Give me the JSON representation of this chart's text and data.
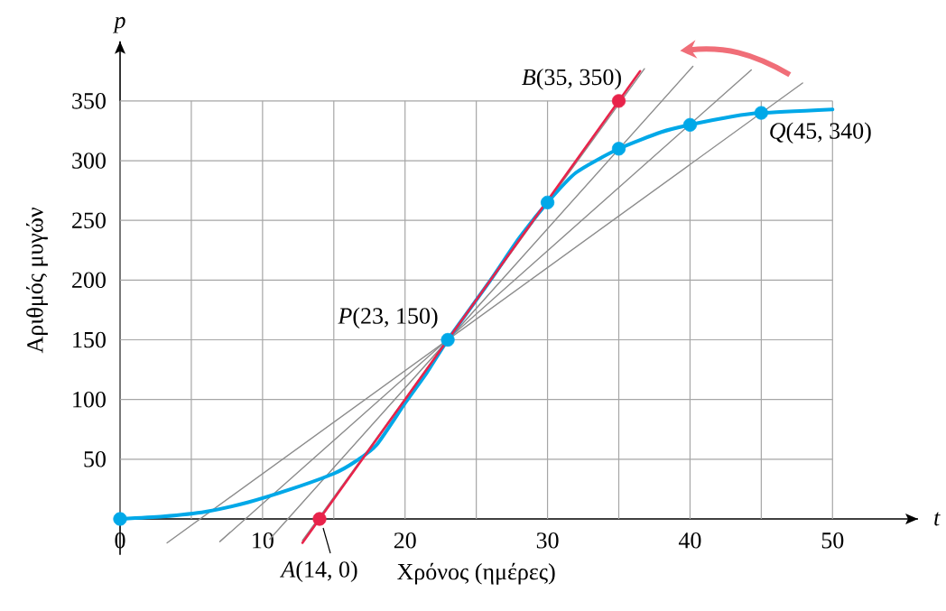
{
  "chart_data": {
    "type": "line",
    "xlabel": "Χρόνος (ημέρες)",
    "ylabel": "Αριθμός μυγών",
    "xlim": [
      0,
      56
    ],
    "ylim": [
      -30,
      400
    ],
    "xticks": [
      0,
      {
        "value": 5,
        "label": null
      },
      10,
      {
        "value": 15,
        "label": null
      },
      20,
      {
        "value": 25,
        "label": null
      },
      30,
      {
        "value": 35,
        "label": null
      },
      40,
      {
        "value": 45,
        "label": null
      },
      50
    ],
    "yticks": [
      50,
      100,
      150,
      200,
      250,
      300,
      350
    ],
    "grid": true,
    "series": [
      {
        "color": "#8c8c8c",
        "x": [
          3.3,
          47.9
        ],
        "values": [
          -20,
          365
        ]
      },
      {
        "color": "#8c8c8c",
        "x": [
          7,
          44.3
        ],
        "values": [
          -19,
          376
        ]
      },
      {
        "color": "#8c8c8c",
        "x": [
          10.5,
          40.2
        ],
        "values": [
          -17,
          379
        ]
      },
      {
        "color": "#8c8c8c",
        "x": [
          12.8,
          36.8
        ],
        "values": [
          -18,
          377
        ]
      },
      {
        "color": "#00a8e8",
        "x": [
          0,
          3,
          6,
          9,
          12,
          15,
          16.5,
          18,
          20,
          21.5,
          23,
          26,
          28,
          30,
          32,
          35,
          38,
          40,
          43,
          45,
          50
        ],
        "values": [
          0,
          2,
          6,
          14,
          25,
          38,
          48,
          62,
          97,
          122,
          150,
          200,
          235,
          265,
          290,
          310,
          324,
          330,
          337,
          340,
          343
        ]
      },
      {
        "color": "#e8234a",
        "x": [
          12.8,
          36.5
        ],
        "values": [
          -20,
          375
        ]
      },
      {
        "type": "scatter",
        "color": "#00a8e8",
        "marker": "circle",
        "x": [
          0,
          23,
          30,
          35,
          40,
          45
        ],
        "values": [
          0,
          150,
          265,
          310,
          330,
          340
        ]
      },
      {
        "type": "scatter",
        "color": "#e8234a",
        "marker": "circle",
        "x": [
          14,
          35
        ],
        "values": [
          0,
          350
        ]
      }
    ],
    "annotations": [
      "p",
      "t",
      {
        "text": "*P*(23, 150)",
        "x": 23,
        "y": 150
      },
      {
        "text": "*Q*(45, 340)",
        "x": 45,
        "y": 340
      },
      {
        "text": "*B*(35, 350)",
        "x": 35,
        "y": 350
      },
      {
        "text": "*A*(14, 0)",
        "x": 14,
        "y": 0
      }
    ]
  }
}
